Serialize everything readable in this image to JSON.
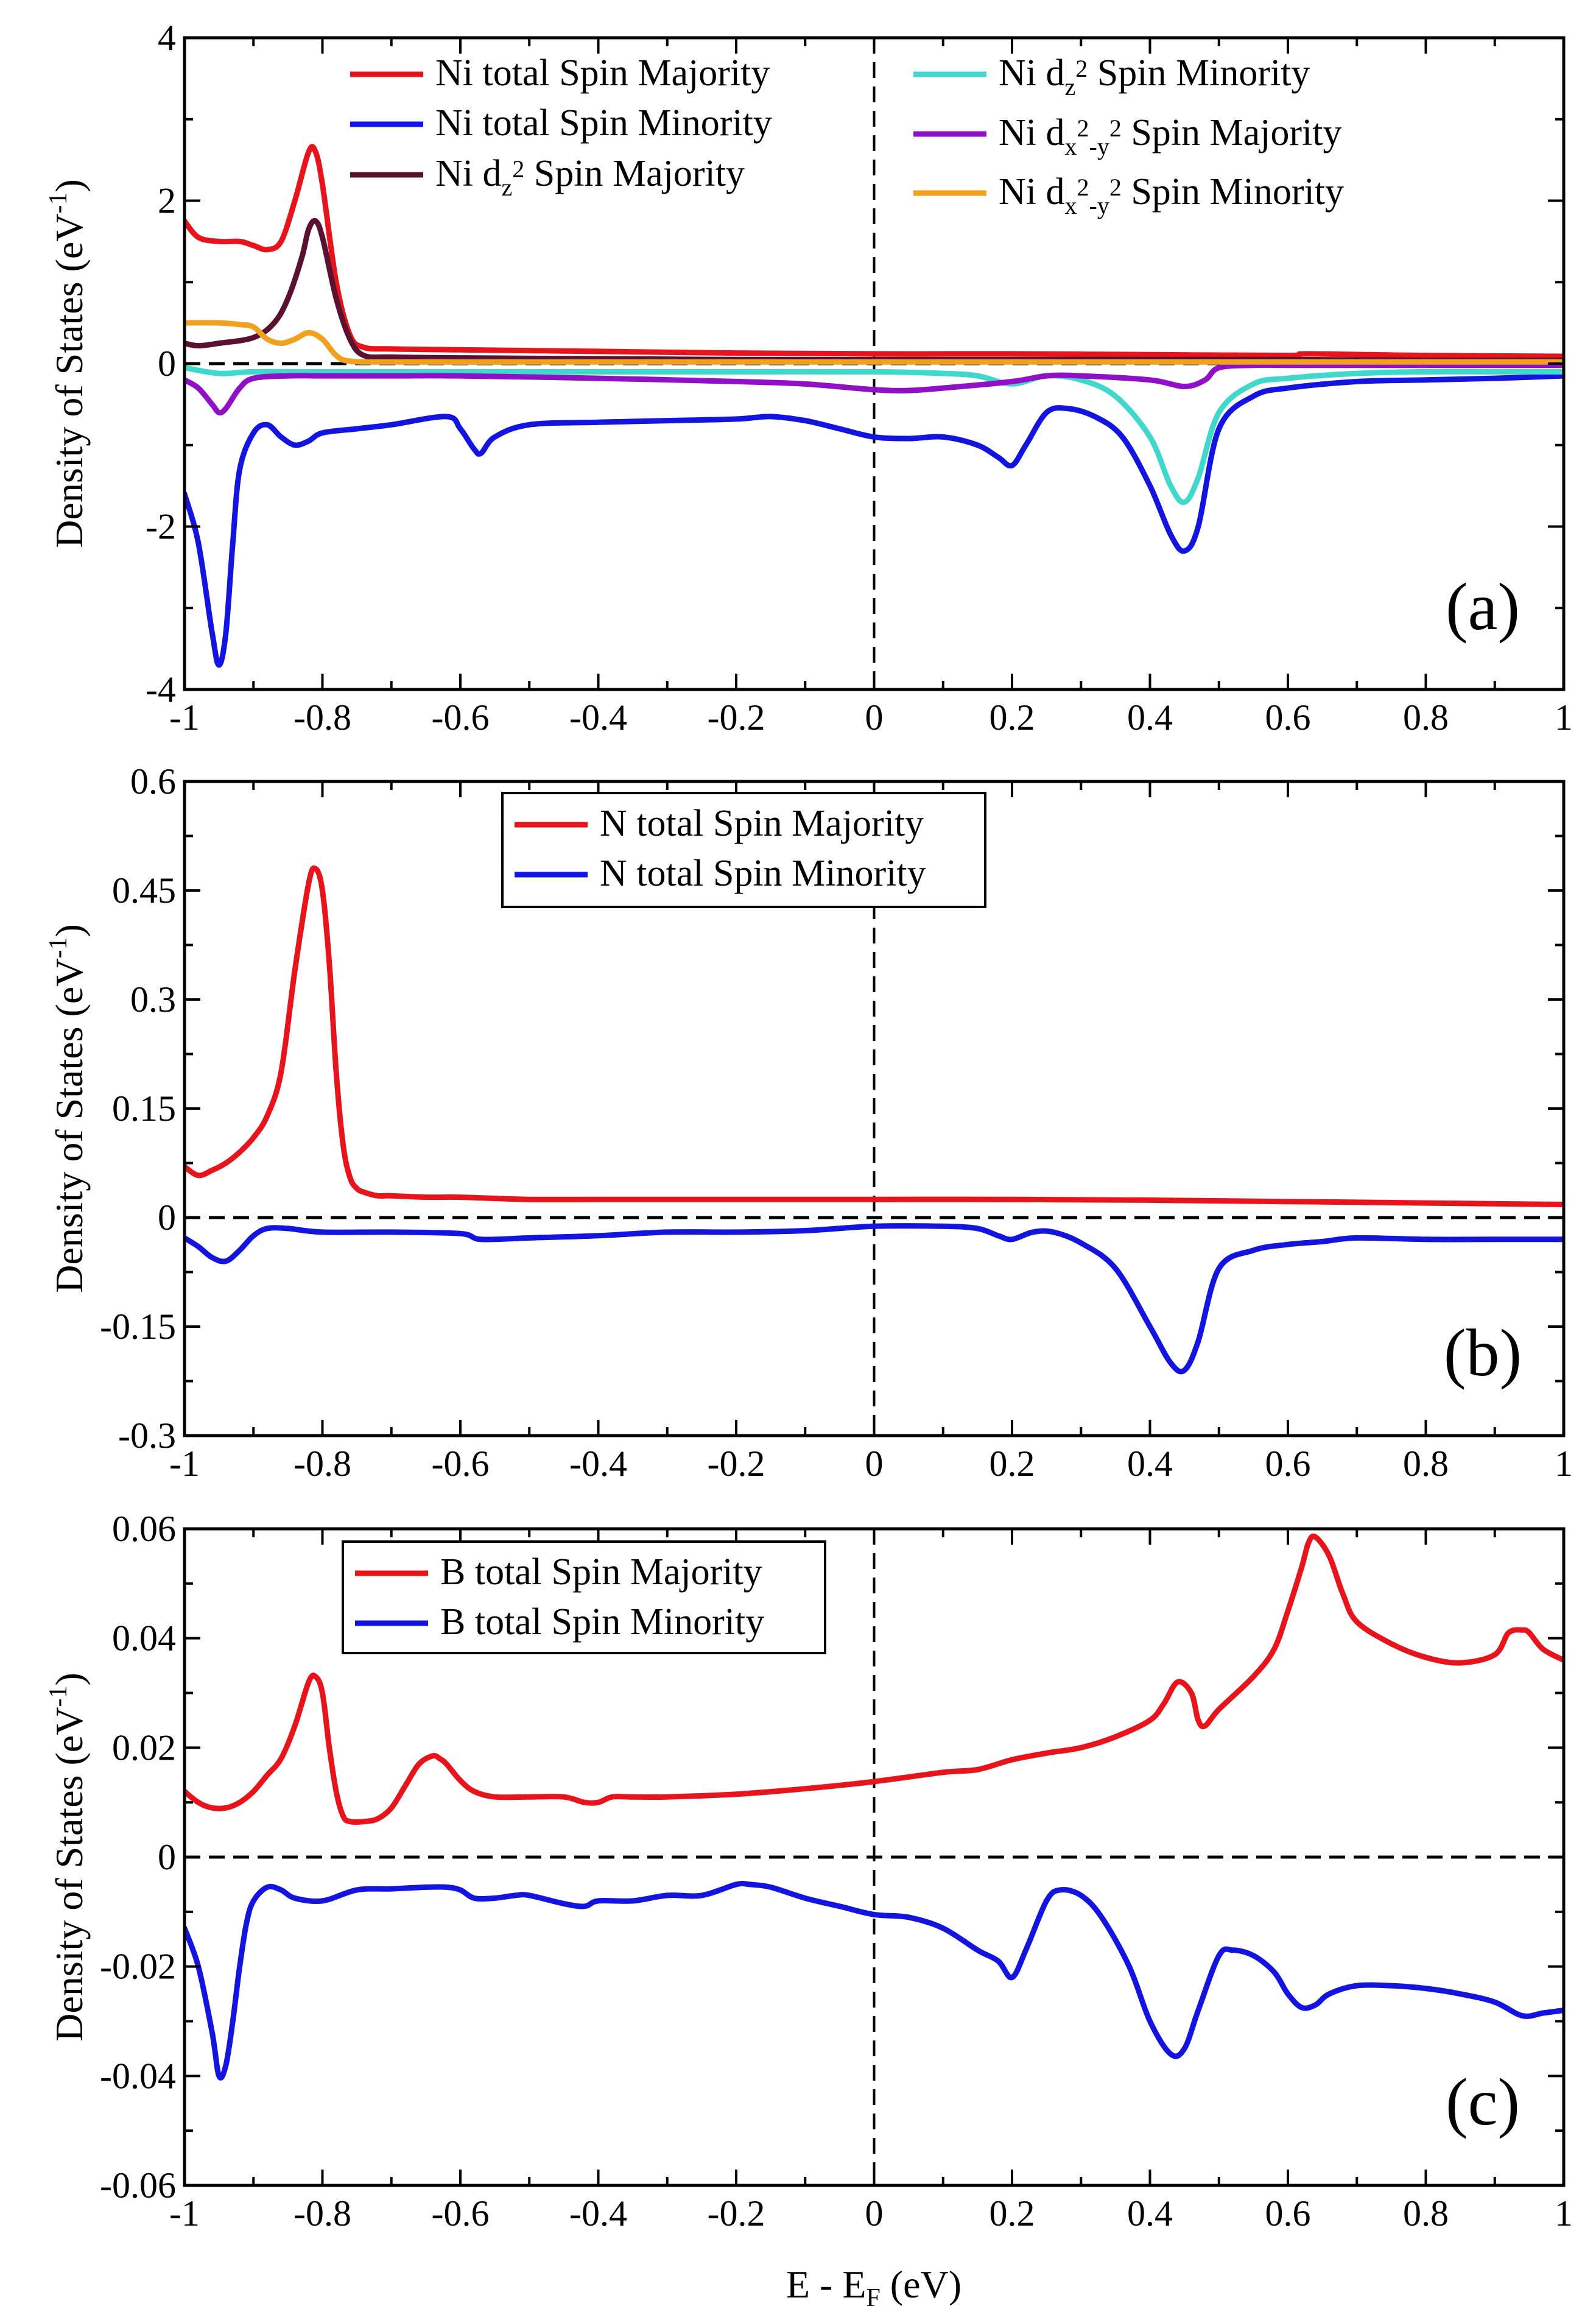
{
  "figure": {
    "xlabel_main": "E - E",
    "xlabel_sub": "F",
    "xlabel_unit": " (eV)",
    "ylabel": "Density of States (eV",
    "ylabel_sup": "-1",
    "ylabel_close": ")",
    "colors": {
      "red": "#e8141c",
      "blue": "#1414e0",
      "maroon": "#5a1230",
      "turquoise": "#40d8cc",
      "violet": "#9010c8",
      "orange": "#f2a020",
      "axis": "#000000"
    }
  },
  "chart_data": [
    {
      "type": "line",
      "panel": "(a)",
      "xlim": [
        -1,
        1
      ],
      "ylim": [
        -4,
        4
      ],
      "xticks": [
        "-1",
        "-0.8",
        "-0.6",
        "-0.4",
        "-0.2",
        "0",
        "0.2",
        "0.4",
        "0.6",
        "0.8",
        "1"
      ],
      "yticks": [
        "-4",
        "-2",
        "0",
        "2",
        "4"
      ],
      "ytick_values": [
        -4,
        -2,
        0,
        2,
        4
      ],
      "legend": [
        {
          "prefix": "Ni total Spin Majority",
          "color_key": "red"
        },
        {
          "prefix": "Ni total Spin Minority",
          "color_key": "blue"
        },
        {
          "prefix": "Ni d",
          "sub": "z",
          "sup": "2",
          "suffix": " Spin Majority",
          "color_key": "maroon"
        },
        {
          "prefix": "Ni d",
          "sub": "z",
          "sup": "2",
          "suffix": " Spin Minority",
          "color_key": "turquoise"
        },
        {
          "prefix": "Ni d",
          "sub": "x",
          "sup": "2",
          "sub2": "-y",
          "sup2": "2",
          "suffix": " Spin Majority",
          "color_key": "violet"
        },
        {
          "prefix": "Ni d",
          "sub": "x",
          "sup": "2",
          "sub2": "-y",
          "sup2": "2",
          "suffix": " Spin Minority",
          "color_key": "orange"
        }
      ],
      "series": [
        {
          "name": "Ni total Spin Majority",
          "color_key": "red",
          "x": [
            -1,
            -0.98,
            -0.95,
            -0.92,
            -0.9,
            -0.88,
            -0.86,
            -0.84,
            -0.82,
            -0.81,
            -0.8,
            -0.78,
            -0.76,
            -0.74,
            -0.7,
            -0.6,
            -0.4,
            -0.2,
            0,
            0.2,
            0.4,
            0.6,
            0.63,
            0.8,
            1
          ],
          "y": [
            1.75,
            1.55,
            1.5,
            1.5,
            1.45,
            1.4,
            1.5,
            2.0,
            2.6,
            2.6,
            2.2,
            1.0,
            0.35,
            0.2,
            0.18,
            0.17,
            0.15,
            0.13,
            0.12,
            0.12,
            0.11,
            0.1,
            0.12,
            0.1,
            0.09
          ]
        },
        {
          "name": "Ni total Spin Minority",
          "color_key": "blue",
          "x": [
            -1,
            -0.98,
            -0.96,
            -0.95,
            -0.94,
            -0.93,
            -0.92,
            -0.9,
            -0.88,
            -0.86,
            -0.84,
            -0.82,
            -0.8,
            -0.75,
            -0.7,
            -0.62,
            -0.6,
            -0.58,
            -0.57,
            -0.55,
            -0.5,
            -0.4,
            -0.3,
            -0.2,
            -0.15,
            -0.1,
            -0.05,
            0,
            0.05,
            0.1,
            0.15,
            0.18,
            0.2,
            0.22,
            0.25,
            0.28,
            0.32,
            0.36,
            0.4,
            0.43,
            0.45,
            0.47,
            0.5,
            0.55,
            0.6,
            0.7,
            0.8,
            0.9,
            1
          ],
          "y": [
            -1.6,
            -2.2,
            -3.3,
            -3.7,
            -3.3,
            -2.2,
            -1.3,
            -0.85,
            -0.75,
            -0.9,
            -1.0,
            -0.95,
            -0.85,
            -0.8,
            -0.75,
            -0.65,
            -0.8,
            -1.05,
            -1.1,
            -0.9,
            -0.75,
            -0.72,
            -0.7,
            -0.68,
            -0.65,
            -0.7,
            -0.8,
            -0.9,
            -0.92,
            -0.9,
            -1.0,
            -1.15,
            -1.25,
            -1.0,
            -0.6,
            -0.55,
            -0.65,
            -0.9,
            -1.5,
            -2.1,
            -2.3,
            -2.0,
            -0.8,
            -0.4,
            -0.3,
            -0.22,
            -0.2,
            -0.18,
            -0.15
          ]
        },
        {
          "name": "Ni dz2 Spin Majority",
          "color_key": "maroon",
          "x": [
            -1,
            -0.98,
            -0.95,
            -0.9,
            -0.87,
            -0.85,
            -0.83,
            -0.82,
            -0.81,
            -0.8,
            -0.78,
            -0.76,
            -0.74,
            -0.7,
            -0.6,
            -0.4,
            -0.2,
            0,
            0.2,
            0.4,
            0.6,
            0.8,
            1
          ],
          "y": [
            0.25,
            0.22,
            0.25,
            0.32,
            0.5,
            0.8,
            1.3,
            1.65,
            1.75,
            1.55,
            0.8,
            0.3,
            0.1,
            0.08,
            0.07,
            0.06,
            0.05,
            0.05,
            0.05,
            0.05,
            0.05,
            0.04,
            0.04
          ]
        },
        {
          "name": "Ni dz2 Spin Minority",
          "color_key": "turquoise",
          "x": [
            -1,
            -0.95,
            -0.9,
            -0.8,
            -0.6,
            -0.4,
            -0.2,
            0,
            0.1,
            0.15,
            0.2,
            0.25,
            0.3,
            0.35,
            0.4,
            0.43,
            0.45,
            0.47,
            0.5,
            0.55,
            0.6,
            0.7,
            0.8,
            0.9,
            1
          ],
          "y": [
            -0.05,
            -0.12,
            -0.1,
            -0.1,
            -0.1,
            -0.1,
            -0.1,
            -0.1,
            -0.12,
            -0.15,
            -0.25,
            -0.15,
            -0.2,
            -0.4,
            -0.9,
            -1.5,
            -1.7,
            -1.4,
            -0.6,
            -0.25,
            -0.18,
            -0.12,
            -0.1,
            -0.1,
            -0.1
          ]
        },
        {
          "name": "Ni dx2-y2 Spin Majority",
          "color_key": "violet",
          "x": [
            -1,
            -0.98,
            -0.96,
            -0.95,
            -0.94,
            -0.92,
            -0.9,
            -0.85,
            -0.8,
            -0.7,
            -0.6,
            -0.4,
            -0.2,
            -0.1,
            0,
            0.05,
            0.1,
            0.2,
            0.25,
            0.3,
            0.4,
            0.45,
            0.48,
            0.5,
            0.55,
            0.6,
            0.7,
            0.8,
            0.9,
            1
          ],
          "y": [
            -0.2,
            -0.3,
            -0.5,
            -0.6,
            -0.55,
            -0.3,
            -0.18,
            -0.15,
            -0.15,
            -0.15,
            -0.15,
            -0.18,
            -0.22,
            -0.25,
            -0.32,
            -0.33,
            -0.3,
            -0.22,
            -0.15,
            -0.15,
            -0.2,
            -0.28,
            -0.2,
            -0.05,
            -0.02,
            -0.02,
            -0.02,
            -0.02,
            -0.02,
            -0.02
          ]
        },
        {
          "name": "Ni dx2-y2 Spin Minority",
          "color_key": "orange",
          "x": [
            -1,
            -0.95,
            -0.92,
            -0.9,
            -0.88,
            -0.86,
            -0.84,
            -0.82,
            -0.8,
            -0.78,
            -0.76,
            -0.7,
            -0.5,
            -0.3,
            0,
            0.3,
            0.5,
            0.7,
            1
          ],
          "y": [
            0.5,
            0.5,
            0.48,
            0.45,
            0.3,
            0.25,
            0.3,
            0.38,
            0.3,
            0.1,
            0.03,
            0.02,
            0.02,
            0.02,
            0.02,
            0.02,
            0.02,
            0.02,
            0.02
          ]
        }
      ]
    },
    {
      "type": "line",
      "panel": "(b)",
      "xlim": [
        -1,
        1
      ],
      "ylim": [
        -0.3,
        0.6
      ],
      "xticks": [
        "-1",
        "-0.8",
        "-0.6",
        "-0.4",
        "-0.2",
        "0",
        "0.2",
        "0.4",
        "0.6",
        "0.8",
        "1"
      ],
      "yticks": [
        "-0.3",
        "-0.15",
        "0",
        "0.15",
        "0.3",
        "0.45",
        "0.6"
      ],
      "ytick_values": [
        -0.3,
        -0.15,
        0,
        0.15,
        0.3,
        0.45,
        0.6
      ],
      "legend": [
        {
          "prefix": "N total Spin Majority",
          "color_key": "red"
        },
        {
          "prefix": "N total Spin Minority",
          "color_key": "blue"
        }
      ],
      "series": [
        {
          "name": "N total Spin Majority",
          "color_key": "red",
          "x": [
            -1,
            -0.98,
            -0.96,
            -0.94,
            -0.92,
            -0.9,
            -0.88,
            -0.86,
            -0.84,
            -0.82,
            -0.81,
            -0.8,
            -0.79,
            -0.78,
            -0.77,
            -0.76,
            -0.75,
            -0.74,
            -0.72,
            -0.7,
            -0.65,
            -0.6,
            -0.5,
            -0.4,
            -0.2,
            0,
            0.2,
            0.4,
            0.6,
            0.8,
            1
          ],
          "y": [
            0.07,
            0.058,
            0.065,
            0.075,
            0.09,
            0.11,
            0.14,
            0.2,
            0.34,
            0.46,
            0.48,
            0.45,
            0.35,
            0.2,
            0.1,
            0.055,
            0.04,
            0.035,
            0.03,
            0.03,
            0.028,
            0.028,
            0.025,
            0.025,
            0.025,
            0.025,
            0.025,
            0.024,
            0.022,
            0.02,
            0.018
          ]
        },
        {
          "name": "N total Spin Minority",
          "color_key": "blue",
          "x": [
            -1,
            -0.98,
            -0.96,
            -0.94,
            -0.92,
            -0.9,
            -0.88,
            -0.85,
            -0.8,
            -0.7,
            -0.6,
            -0.57,
            -0.5,
            -0.4,
            -0.3,
            -0.2,
            -0.1,
            0,
            0.1,
            0.15,
            0.18,
            0.2,
            0.23,
            0.26,
            0.3,
            0.35,
            0.4,
            0.43,
            0.45,
            0.47,
            0.5,
            0.55,
            0.6,
            0.65,
            0.7,
            0.8,
            0.9,
            1
          ],
          "y": [
            -0.028,
            -0.04,
            -0.055,
            -0.06,
            -0.045,
            -0.025,
            -0.015,
            -0.015,
            -0.02,
            -0.02,
            -0.022,
            -0.03,
            -0.028,
            -0.025,
            -0.02,
            -0.02,
            -0.018,
            -0.012,
            -0.012,
            -0.015,
            -0.025,
            -0.03,
            -0.02,
            -0.02,
            -0.035,
            -0.07,
            -0.15,
            -0.2,
            -0.21,
            -0.17,
            -0.07,
            -0.045,
            -0.037,
            -0.033,
            -0.028,
            -0.03,
            -0.03,
            -0.03
          ]
        }
      ]
    },
    {
      "type": "line",
      "panel": "(c)",
      "xlim": [
        -1,
        1
      ],
      "ylim": [
        -0.06,
        0.06
      ],
      "xticks": [
        "-1",
        "-0.8",
        "-0.6",
        "-0.4",
        "-0.2",
        "0",
        "0.2",
        "0.4",
        "0.6",
        "0.8",
        "1"
      ],
      "yticks": [
        "-0.06",
        "-0.04",
        "-0.02",
        "0",
        "0.02",
        "0.04",
        "0.06"
      ],
      "ytick_values": [
        -0.06,
        -0.04,
        -0.02,
        0,
        0.02,
        0.04,
        0.06
      ],
      "legend": [
        {
          "prefix": "B total Spin Majority",
          "color_key": "red"
        },
        {
          "prefix": "B total Spin Minority",
          "color_key": "blue"
        }
      ],
      "series": [
        {
          "name": "B total Spin Majority",
          "color_key": "red",
          "x": [
            -1,
            -0.98,
            -0.96,
            -0.94,
            -0.92,
            -0.9,
            -0.88,
            -0.86,
            -0.84,
            -0.82,
            -0.81,
            -0.8,
            -0.79,
            -0.78,
            -0.77,
            -0.76,
            -0.74,
            -0.72,
            -0.7,
            -0.68,
            -0.66,
            -0.64,
            -0.63,
            -0.62,
            -0.6,
            -0.58,
            -0.55,
            -0.5,
            -0.45,
            -0.42,
            -0.4,
            -0.38,
            -0.35,
            -0.3,
            -0.2,
            -0.1,
            0,
            0.1,
            0.15,
            0.2,
            0.25,
            0.3,
            0.35,
            0.4,
            0.42,
            0.44,
            0.46,
            0.47,
            0.48,
            0.5,
            0.55,
            0.58,
            0.6,
            0.62,
            0.63,
            0.64,
            0.66,
            0.68,
            0.7,
            0.75,
            0.8,
            0.85,
            0.9,
            0.92,
            0.94,
            0.95,
            0.97,
            1
          ],
          "y": [
            0.012,
            0.01,
            0.009,
            0.009,
            0.01,
            0.012,
            0.015,
            0.018,
            0.024,
            0.032,
            0.033,
            0.03,
            0.02,
            0.012,
            0.0075,
            0.0065,
            0.0065,
            0.007,
            0.009,
            0.013,
            0.017,
            0.0185,
            0.018,
            0.017,
            0.014,
            0.012,
            0.011,
            0.011,
            0.011,
            0.01,
            0.01,
            0.011,
            0.011,
            0.011,
            0.0115,
            0.0125,
            0.0138,
            0.0155,
            0.016,
            0.0178,
            0.019,
            0.02,
            0.022,
            0.025,
            0.028,
            0.032,
            0.03,
            0.025,
            0.024,
            0.027,
            0.033,
            0.038,
            0.045,
            0.053,
            0.0575,
            0.0585,
            0.055,
            0.048,
            0.043,
            0.039,
            0.0365,
            0.0355,
            0.037,
            0.041,
            0.0415,
            0.041,
            0.038,
            0.036
          ]
        },
        {
          "name": "B total Spin Minority",
          "color_key": "blue",
          "x": [
            -1,
            -0.98,
            -0.96,
            -0.95,
            -0.94,
            -0.93,
            -0.92,
            -0.91,
            -0.9,
            -0.88,
            -0.86,
            -0.84,
            -0.8,
            -0.75,
            -0.7,
            -0.65,
            -0.62,
            -0.6,
            -0.58,
            -0.55,
            -0.52,
            -0.5,
            -0.45,
            -0.42,
            -0.4,
            -0.35,
            -0.3,
            -0.25,
            -0.2,
            -0.18,
            -0.15,
            -0.1,
            -0.05,
            0,
            0.05,
            0.1,
            0.15,
            0.18,
            0.2,
            0.22,
            0.25,
            0.27,
            0.3,
            0.33,
            0.37,
            0.4,
            0.43,
            0.45,
            0.47,
            0.5,
            0.52,
            0.55,
            0.58,
            0.6,
            0.62,
            0.64,
            0.66,
            0.7,
            0.75,
            0.8,
            0.85,
            0.9,
            0.94,
            0.97,
            1
          ],
          "y": [
            -0.013,
            -0.02,
            -0.032,
            -0.04,
            -0.038,
            -0.03,
            -0.02,
            -0.012,
            -0.008,
            -0.0055,
            -0.006,
            -0.0075,
            -0.008,
            -0.006,
            -0.0058,
            -0.0055,
            -0.0055,
            -0.006,
            -0.0075,
            -0.0075,
            -0.007,
            -0.007,
            -0.0085,
            -0.009,
            -0.008,
            -0.008,
            -0.007,
            -0.007,
            -0.005,
            -0.005,
            -0.0055,
            -0.0075,
            -0.009,
            -0.0105,
            -0.011,
            -0.013,
            -0.017,
            -0.019,
            -0.022,
            -0.017,
            -0.008,
            -0.006,
            -0.007,
            -0.011,
            -0.02,
            -0.03,
            -0.036,
            -0.035,
            -0.028,
            -0.018,
            -0.017,
            -0.018,
            -0.021,
            -0.025,
            -0.0275,
            -0.027,
            -0.025,
            -0.0235,
            -0.0235,
            -0.024,
            -0.025,
            -0.0265,
            -0.029,
            -0.0285,
            -0.028
          ]
        }
      ]
    }
  ]
}
